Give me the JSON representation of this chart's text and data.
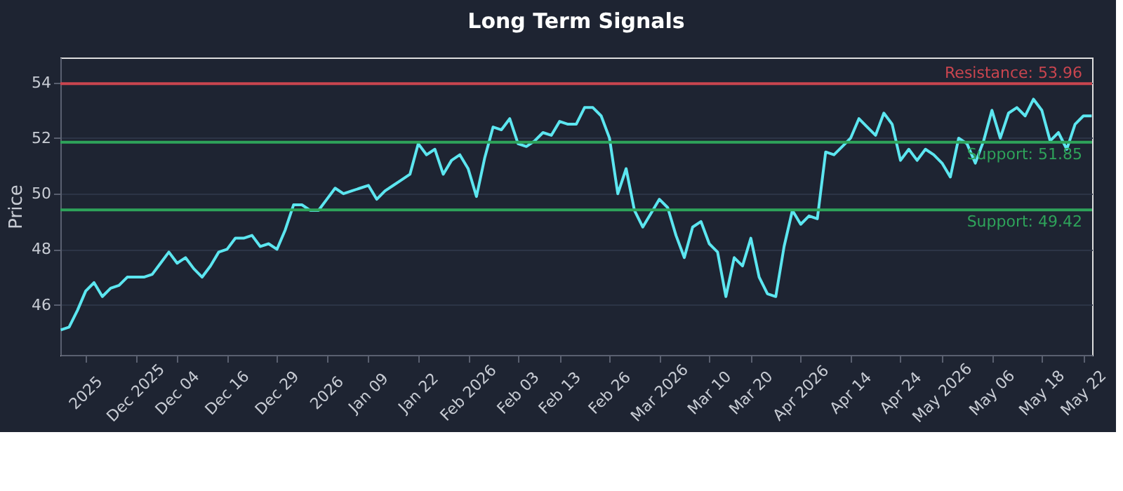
{
  "chart_data": {
    "type": "line",
    "title": "Long Term Signals",
    "ylabel": "Price",
    "categories": [
      null,
      null,
      null,
      "2025",
      null,
      null,
      null,
      null,
      null,
      "Dec 2025",
      null,
      null,
      null,
      null,
      "Dec 04",
      null,
      null,
      null,
      null,
      null,
      "Dec 16",
      null,
      null,
      null,
      null,
      null,
      "Dec 29",
      null,
      null,
      null,
      null,
      null,
      "2026",
      null,
      null,
      null,
      null,
      "Jan 09",
      null,
      null,
      null,
      null,
      null,
      "Jan 22",
      null,
      null,
      null,
      null,
      null,
      "Feb 2026",
      null,
      null,
      null,
      null,
      null,
      "Feb 03",
      null,
      null,
      null,
      null,
      "Feb 13",
      null,
      null,
      null,
      null,
      null,
      "Feb 26",
      null,
      null,
      null,
      null,
      null,
      "Mar 2026",
      null,
      null,
      null,
      null,
      null,
      "Mar 10",
      null,
      null,
      null,
      null,
      "Mar 20",
      null,
      null,
      null,
      null,
      null,
      "Apr 2026",
      null,
      null,
      null,
      null,
      null,
      "Apr 14",
      null,
      null,
      null,
      null,
      null,
      "Apr 24",
      null,
      null,
      null,
      null,
      "May 2026",
      null,
      null,
      null,
      null,
      null,
      "May 06",
      null,
      null,
      null,
      null,
      null,
      "May 18",
      null,
      null,
      null,
      null,
      "May 22",
      null
    ],
    "series": [
      {
        "color": "#5ce6f0",
        "values": [
          45.1,
          45.2,
          45.8,
          46.5,
          46.8,
          46.3,
          46.6,
          46.7,
          47.0,
          47.0,
          47.0,
          47.1,
          47.5,
          47.9,
          47.5,
          47.7,
          47.3,
          47.0,
          47.4,
          47.9,
          48.0,
          48.4,
          48.4,
          48.5,
          48.1,
          48.2,
          48.0,
          48.7,
          49.6,
          49.6,
          49.4,
          49.4,
          49.8,
          50.2,
          50.0,
          50.1,
          50.2,
          50.3,
          49.8,
          50.1,
          50.3,
          50.5,
          50.7,
          51.8,
          51.4,
          51.6,
          50.7,
          51.2,
          51.4,
          50.9,
          49.9,
          51.3,
          52.4,
          52.3,
          52.7,
          51.8,
          51.7,
          51.9,
          52.2,
          52.1,
          52.6,
          52.5,
          52.5,
          53.1,
          53.1,
          52.8,
          52.0,
          50.0,
          50.9,
          49.4,
          48.8,
          49.3,
          49.8,
          49.5,
          48.5,
          47.7,
          48.8,
          49.0,
          48.2,
          47.9,
          46.3,
          47.7,
          47.4,
          48.4,
          47.0,
          46.4,
          46.3,
          48.1,
          49.4,
          48.9,
          49.2,
          49.1,
          51.5,
          51.4,
          51.7,
          52.0,
          52.7,
          52.4,
          52.1,
          52.9,
          52.5,
          51.2,
          51.6,
          51.2,
          51.6,
          51.4,
          51.1,
          50.6,
          52.0,
          51.8,
          51.1,
          51.9,
          53.0,
          52.0,
          52.9,
          53.1,
          52.8,
          53.4,
          53.0,
          51.9,
          52.2,
          51.6,
          52.5,
          52.8,
          52.8
        ]
      }
    ],
    "ylim": [
      44.2,
      54.9
    ],
    "yticks": [
      46,
      48,
      50,
      52,
      54
    ],
    "grid": "y",
    "marker": "none",
    "line_style": "solid",
    "ref_lines": [
      {
        "axis": "y",
        "value": 53.96,
        "label": "Resistance: 53.96",
        "color": "#c9454f"
      },
      {
        "axis": "y",
        "value": 51.85,
        "label": "Support: 51.85",
        "color": "#2ea35a"
      },
      {
        "axis": "y",
        "value": 49.42,
        "label": "Support: 49.42",
        "color": "#2ea35a"
      }
    ]
  }
}
